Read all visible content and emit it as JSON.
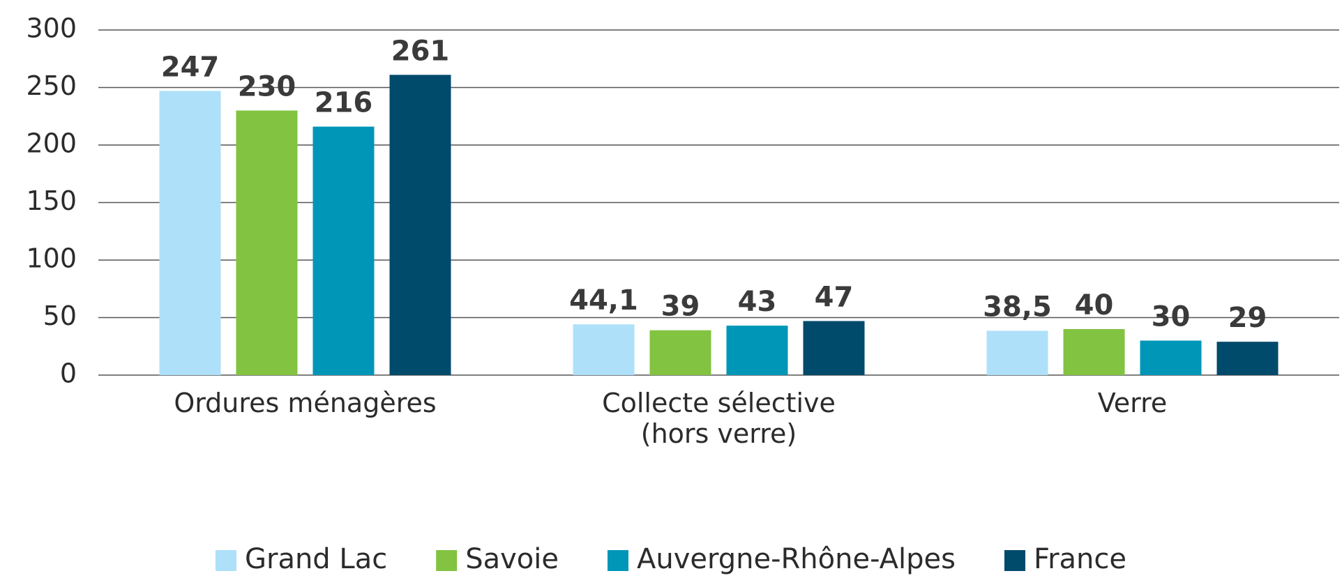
{
  "chart_data": {
    "type": "bar",
    "categories": [
      "Ordures ménagères",
      "Collecte sélective (hors verre)",
      "Verre"
    ],
    "series": [
      {
        "name": "Grand Lac",
        "color": "#aee0f9",
        "values": [
          247,
          44.1,
          38.5
        ],
        "value_labels": [
          "247",
          "44,1",
          "38,5"
        ]
      },
      {
        "name": "Savoie",
        "color": "#82c341",
        "values": [
          230,
          39,
          40
        ],
        "value_labels": [
          "230",
          "39",
          "40"
        ]
      },
      {
        "name": "Auvergne-Rhône-Alpes",
        "color": "#0096b8",
        "values": [
          216,
          43,
          30
        ],
        "value_labels": [
          "216",
          "43",
          "30"
        ]
      },
      {
        "name": "France",
        "color": "#004a6b",
        "values": [
          261,
          47,
          29
        ],
        "value_labels": [
          "261",
          "47",
          "29"
        ]
      }
    ],
    "ylim": [
      0,
      300
    ],
    "yticks": [
      0,
      50,
      100,
      150,
      200,
      250,
      300
    ],
    "grid": true,
    "legend": "bottom"
  }
}
